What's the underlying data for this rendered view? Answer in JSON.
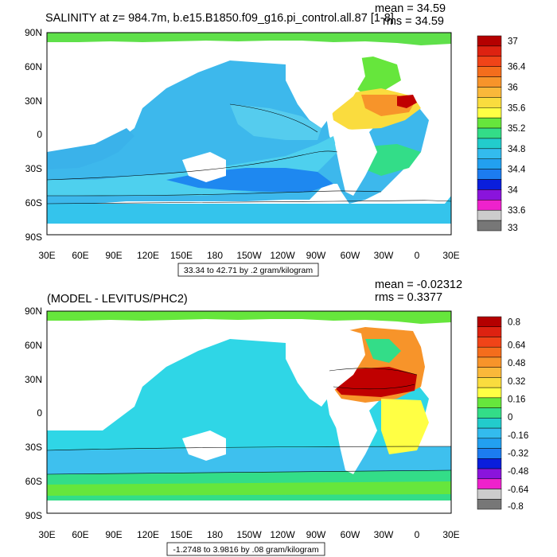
{
  "panels": [
    {
      "title": "SALINITY at z= 984.7m, b.e15.B1850.f09_g16.pi_control.all.87 [1-8]",
      "stats": [
        "mean = 34.59",
        "rms = 34.59"
      ],
      "contour_info": "33.34 to 42.71 by .2 gram/kilogram",
      "colorbar_labels": [
        "37",
        "36.4",
        "36",
        "35.6",
        "35.2",
        "34.8",
        "34.4",
        "34",
        "33.6",
        "33"
      ],
      "colorbar_colors": [
        "#b40000",
        "#dd2211",
        "#f04418",
        "#f46d1c",
        "#f7942a",
        "#fab83a",
        "#fadc3e",
        "#ffff44",
        "#66e63c",
        "#33dd88",
        "#22cccc",
        "#33bbee",
        "#22a0f0",
        "#1c7cf0",
        "#0a1edc",
        "#8a14dc",
        "#ee22cc",
        "#cccccc",
        "#777777"
      ]
    },
    {
      "title": "(MODEL - LEVITUS/PHC2)",
      "stats": [
        "mean = -0.02312",
        "rms = 0.3377"
      ],
      "contour_info": "-1.2748 to 3.9816 by .08 gram/kilogram",
      "colorbar_labels": [
        "0.8",
        "0.64",
        "0.48",
        "0.32",
        "0.16",
        "0",
        "-0.16",
        "-0.32",
        "-0.48",
        "-0.64",
        "-0.8"
      ],
      "colorbar_colors": [
        "#b40000",
        "#dd2211",
        "#f04418",
        "#f46d1c",
        "#f7942a",
        "#fab83a",
        "#fadc3e",
        "#ffff44",
        "#66e63c",
        "#33dd88",
        "#22cccc",
        "#33bbee",
        "#22a0f0",
        "#1c7cf0",
        "#0a1edc",
        "#8a14dc",
        "#ee22cc",
        "#cccccc",
        "#777777"
      ]
    }
  ],
  "axes": {
    "lat_labels": [
      "90N",
      "60N",
      "30N",
      "0",
      "30S",
      "60S",
      "90S"
    ],
    "lon_labels": [
      "30E",
      "60E",
      "90E",
      "120E",
      "150E",
      "180",
      "150W",
      "120W",
      "90W",
      "60W",
      "30W",
      "0",
      "30E"
    ]
  }
}
